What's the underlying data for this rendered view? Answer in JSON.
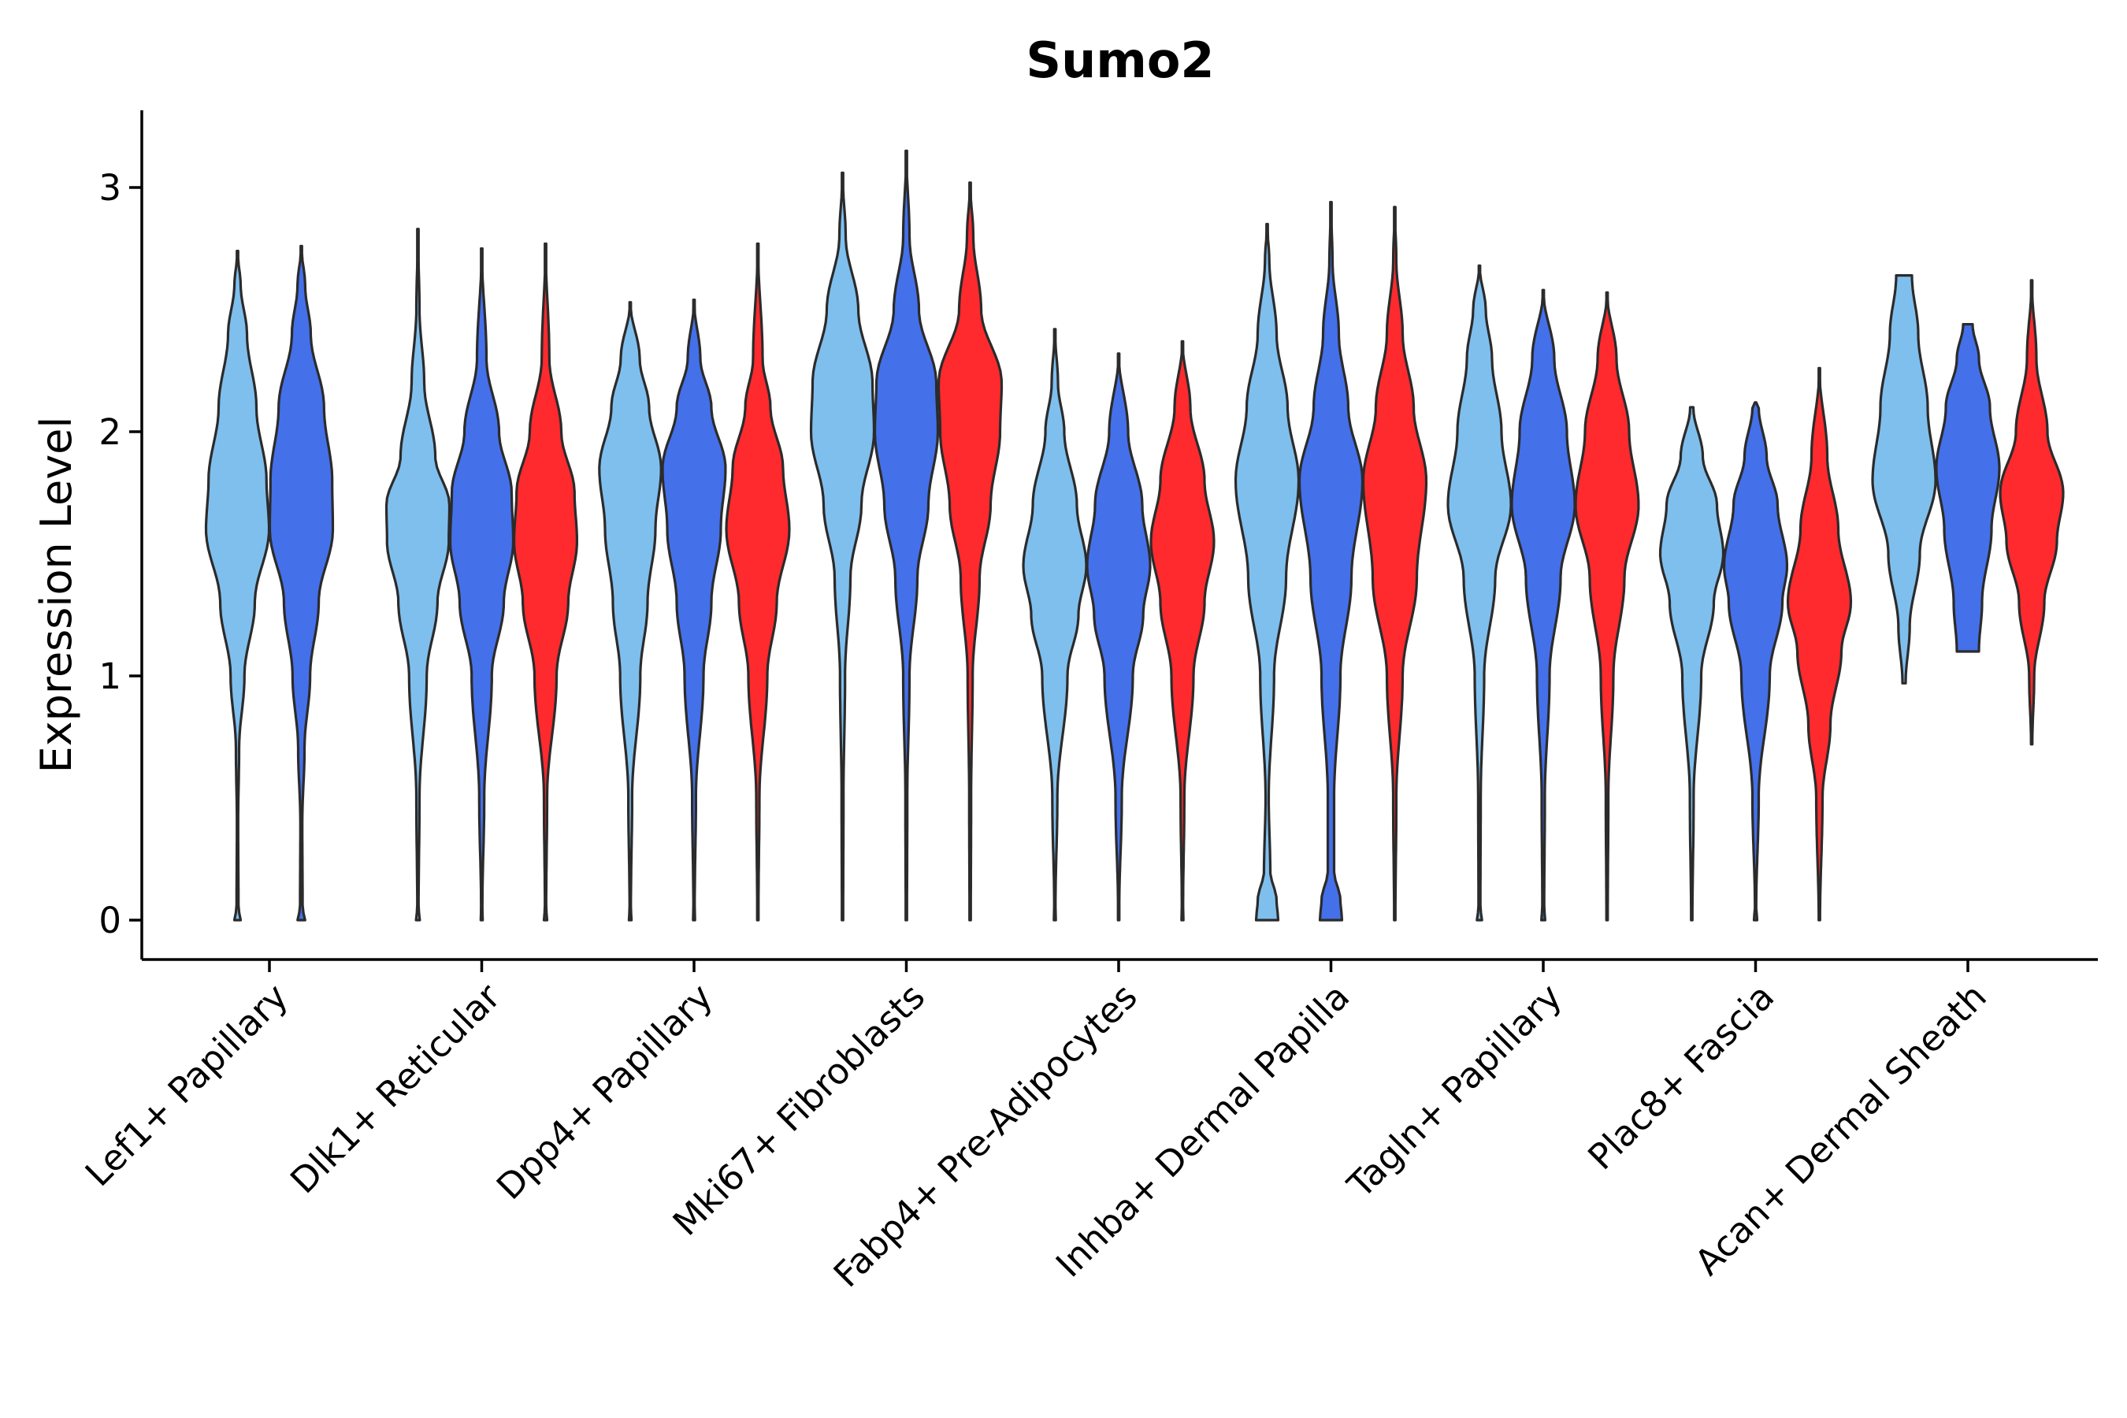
{
  "chart_data": {
    "type": "violin",
    "title": "Sumo2",
    "xlabel": "",
    "ylabel": "Expression Level",
    "ylim": [
      -0.16,
      3.3
    ],
    "yticks": [
      0,
      1,
      2,
      3
    ],
    "grid": false,
    "legend": "none",
    "series_colors": [
      "#7fbfee",
      "#4470ea",
      "#ff2a2e"
    ],
    "categories": [
      "Lef1+ Papillary",
      "Dlk1+ Reticular",
      "Dpp4+ Papillary",
      "Mki67+ Fibroblasts",
      "Fabp4+ Pre-Adipocytes",
      "Inhba+ Dermal Papilla",
      "Tagln+ Papillary",
      "Plac8+ Fascia",
      "Acan+ Dermal Sheath"
    ],
    "violins": [
      {
        "category": 0,
        "series": 0,
        "profile": [
          [
            0,
            0.1
          ],
          [
            0.05,
            0.03
          ],
          [
            0.4,
            0.02
          ],
          [
            0.7,
            0.05
          ],
          [
            1.0,
            0.22
          ],
          [
            1.3,
            0.55
          ],
          [
            1.6,
            1.0
          ],
          [
            1.8,
            0.92
          ],
          [
            2.1,
            0.6
          ],
          [
            2.4,
            0.3
          ],
          [
            2.6,
            0.1
          ],
          [
            2.74,
            0
          ]
        ]
      },
      {
        "category": 0,
        "series": 1,
        "profile": [
          [
            0,
            0.12
          ],
          [
            0.05,
            0.04
          ],
          [
            0.4,
            0.03
          ],
          [
            0.7,
            0.1
          ],
          [
            1.0,
            0.28
          ],
          [
            1.3,
            0.55
          ],
          [
            1.6,
            1.0
          ],
          [
            1.8,
            0.98
          ],
          [
            2.1,
            0.72
          ],
          [
            2.4,
            0.3
          ],
          [
            2.6,
            0.12
          ],
          [
            2.76,
            0
          ]
        ]
      },
      {
        "category": 1,
        "series": 0,
        "profile": [
          [
            0,
            0.06
          ],
          [
            0.05,
            0.02
          ],
          [
            0.5,
            0.05
          ],
          [
            1.0,
            0.28
          ],
          [
            1.3,
            0.62
          ],
          [
            1.55,
            0.98
          ],
          [
            1.7,
            1.0
          ],
          [
            1.9,
            0.55
          ],
          [
            2.2,
            0.2
          ],
          [
            2.5,
            0.05
          ],
          [
            2.83,
            0
          ]
        ]
      },
      {
        "category": 1,
        "series": 1,
        "profile": [
          [
            0,
            0.03
          ],
          [
            0.05,
            0.02
          ],
          [
            0.5,
            0.08
          ],
          [
            1.0,
            0.32
          ],
          [
            1.3,
            0.7
          ],
          [
            1.55,
            1.0
          ],
          [
            1.75,
            0.95
          ],
          [
            2.0,
            0.55
          ],
          [
            2.3,
            0.15
          ],
          [
            2.75,
            0
          ]
        ]
      },
      {
        "category": 1,
        "series": 2,
        "profile": [
          [
            0,
            0.05
          ],
          [
            0.05,
            0.02
          ],
          [
            0.5,
            0.05
          ],
          [
            1.0,
            0.35
          ],
          [
            1.3,
            0.72
          ],
          [
            1.55,
            1.0
          ],
          [
            1.75,
            0.92
          ],
          [
            2.0,
            0.5
          ],
          [
            2.3,
            0.12
          ],
          [
            2.77,
            0
          ]
        ]
      },
      {
        "category": 2,
        "series": 0,
        "profile": [
          [
            0,
            0.04
          ],
          [
            0.05,
            0.02
          ],
          [
            0.5,
            0.06
          ],
          [
            1.0,
            0.32
          ],
          [
            1.3,
            0.55
          ],
          [
            1.6,
            0.8
          ],
          [
            1.85,
            0.98
          ],
          [
            2.1,
            0.6
          ],
          [
            2.3,
            0.3
          ],
          [
            2.53,
            0
          ]
        ]
      },
      {
        "category": 2,
        "series": 1,
        "profile": [
          [
            0,
            0.03
          ],
          [
            0.05,
            0.02
          ],
          [
            0.5,
            0.06
          ],
          [
            1.0,
            0.3
          ],
          [
            1.3,
            0.55
          ],
          [
            1.6,
            0.85
          ],
          [
            1.85,
            1.0
          ],
          [
            2.1,
            0.55
          ],
          [
            2.3,
            0.2
          ],
          [
            2.54,
            0
          ]
        ]
      },
      {
        "category": 2,
        "series": 2,
        "profile": [
          [
            0,
            0.02
          ],
          [
            0.05,
            0.02
          ],
          [
            0.5,
            0.05
          ],
          [
            1.0,
            0.3
          ],
          [
            1.3,
            0.6
          ],
          [
            1.6,
            1.0
          ],
          [
            1.85,
            0.8
          ],
          [
            2.1,
            0.4
          ],
          [
            2.3,
            0.15
          ],
          [
            2.77,
            0
          ]
        ]
      },
      {
        "category": 3,
        "series": 0,
        "profile": [
          [
            0,
            0.02
          ],
          [
            0.5,
            0.03
          ],
          [
            1.0,
            0.08
          ],
          [
            1.4,
            0.25
          ],
          [
            1.7,
            0.6
          ],
          [
            2.0,
            1.0
          ],
          [
            2.2,
            0.95
          ],
          [
            2.5,
            0.5
          ],
          [
            2.8,
            0.1
          ],
          [
            3.06,
            0
          ]
        ]
      },
      {
        "category": 3,
        "series": 1,
        "profile": [
          [
            0,
            0.02
          ],
          [
            0.5,
            0.03
          ],
          [
            1.0,
            0.1
          ],
          [
            1.4,
            0.35
          ],
          [
            1.7,
            0.7
          ],
          [
            2.0,
            1.0
          ],
          [
            2.2,
            0.95
          ],
          [
            2.5,
            0.4
          ],
          [
            2.8,
            0.1
          ],
          [
            3.15,
            0
          ]
        ]
      },
      {
        "category": 3,
        "series": 2,
        "profile": [
          [
            0,
            0.02
          ],
          [
            0.5,
            0.03
          ],
          [
            1.0,
            0.08
          ],
          [
            1.4,
            0.3
          ],
          [
            1.7,
            0.65
          ],
          [
            2.0,
            0.95
          ],
          [
            2.2,
            1.0
          ],
          [
            2.5,
            0.35
          ],
          [
            2.8,
            0.1
          ],
          [
            3.02,
            0
          ]
        ]
      },
      {
        "category": 4,
        "series": 0,
        "profile": [
          [
            0,
            0.03
          ],
          [
            0.05,
            0.02
          ],
          [
            0.5,
            0.08
          ],
          [
            1.0,
            0.4
          ],
          [
            1.25,
            0.75
          ],
          [
            1.45,
            1.0
          ],
          [
            1.7,
            0.7
          ],
          [
            2.0,
            0.3
          ],
          [
            2.2,
            0.1
          ],
          [
            2.42,
            0
          ]
        ]
      },
      {
        "category": 4,
        "series": 1,
        "profile": [
          [
            0,
            0.02
          ],
          [
            0.05,
            0.02
          ],
          [
            0.5,
            0.1
          ],
          [
            1.0,
            0.45
          ],
          [
            1.25,
            0.78
          ],
          [
            1.45,
            1.0
          ],
          [
            1.7,
            0.75
          ],
          [
            2.0,
            0.3
          ],
          [
            2.32,
            0
          ]
        ]
      },
      {
        "category": 4,
        "series": 2,
        "profile": [
          [
            0,
            0.03
          ],
          [
            0.05,
            0.02
          ],
          [
            0.5,
            0.06
          ],
          [
            1.0,
            0.35
          ],
          [
            1.3,
            0.7
          ],
          [
            1.55,
            1.0
          ],
          [
            1.8,
            0.7
          ],
          [
            2.1,
            0.25
          ],
          [
            2.37,
            0
          ]
        ]
      },
      {
        "category": 5,
        "series": 0,
        "profile": [
          [
            0,
            0.35
          ],
          [
            0.08,
            0.3
          ],
          [
            0.2,
            0.1
          ],
          [
            0.5,
            0.05
          ],
          [
            1.0,
            0.22
          ],
          [
            1.4,
            0.6
          ],
          [
            1.8,
            1.0
          ],
          [
            2.1,
            0.65
          ],
          [
            2.4,
            0.3
          ],
          [
            2.7,
            0.07
          ],
          [
            2.85,
            0
          ]
        ]
      },
      {
        "category": 5,
        "series": 1,
        "profile": [
          [
            0,
            0.35
          ],
          [
            0.08,
            0.3
          ],
          [
            0.2,
            0.1
          ],
          [
            0.5,
            0.1
          ],
          [
            1.0,
            0.3
          ],
          [
            1.4,
            0.65
          ],
          [
            1.8,
            1.0
          ],
          [
            2.1,
            0.55
          ],
          [
            2.4,
            0.25
          ],
          [
            2.7,
            0.05
          ],
          [
            2.94,
            0
          ]
        ]
      },
      {
        "category": 5,
        "series": 2,
        "profile": [
          [
            0,
            0.02
          ],
          [
            0.5,
            0.05
          ],
          [
            1.0,
            0.25
          ],
          [
            1.4,
            0.7
          ],
          [
            1.8,
            1.0
          ],
          [
            2.1,
            0.6
          ],
          [
            2.4,
            0.25
          ],
          [
            2.7,
            0.05
          ],
          [
            2.92,
            0
          ]
        ]
      },
      {
        "category": 6,
        "series": 0,
        "profile": [
          [
            0,
            0.08
          ],
          [
            0.05,
            0.03
          ],
          [
            0.5,
            0.04
          ],
          [
            1.0,
            0.15
          ],
          [
            1.4,
            0.5
          ],
          [
            1.7,
            1.0
          ],
          [
            2.0,
            0.7
          ],
          [
            2.3,
            0.4
          ],
          [
            2.5,
            0.2
          ],
          [
            2.68,
            0
          ]
        ]
      },
      {
        "category": 6,
        "series": 1,
        "profile": [
          [
            0,
            0.06
          ],
          [
            0.05,
            0.03
          ],
          [
            0.5,
            0.05
          ],
          [
            1.0,
            0.2
          ],
          [
            1.4,
            0.55
          ],
          [
            1.7,
            1.0
          ],
          [
            2.0,
            0.75
          ],
          [
            2.3,
            0.35
          ],
          [
            2.58,
            0
          ]
        ]
      },
      {
        "category": 6,
        "series": 2,
        "profile": [
          [
            0,
            0.02
          ],
          [
            0.5,
            0.04
          ],
          [
            1.0,
            0.2
          ],
          [
            1.4,
            0.55
          ],
          [
            1.7,
            1.0
          ],
          [
            2.0,
            0.7
          ],
          [
            2.3,
            0.3
          ],
          [
            2.57,
            0
          ]
        ]
      },
      {
        "category": 7,
        "series": 0,
        "profile": [
          [
            0,
            0.02
          ],
          [
            0.5,
            0.06
          ],
          [
            1.0,
            0.3
          ],
          [
            1.3,
            0.7
          ],
          [
            1.5,
            1.0
          ],
          [
            1.7,
            0.8
          ],
          [
            1.9,
            0.35
          ],
          [
            2.1,
            0.05
          ],
          [
            2.1,
            0
          ]
        ]
      },
      {
        "category": 7,
        "series": 1,
        "profile": [
          [
            0,
            0.05
          ],
          [
            0.05,
            0.02
          ],
          [
            0.5,
            0.1
          ],
          [
            1.0,
            0.45
          ],
          [
            1.3,
            0.85
          ],
          [
            1.45,
            1.0
          ],
          [
            1.7,
            0.7
          ],
          [
            1.9,
            0.35
          ],
          [
            2.1,
            0.1
          ],
          [
            2.12,
            0
          ]
        ]
      },
      {
        "category": 7,
        "series": 2,
        "profile": [
          [
            0,
            0.02
          ],
          [
            0.5,
            0.1
          ],
          [
            0.8,
            0.35
          ],
          [
            1.1,
            0.7
          ],
          [
            1.3,
            1.0
          ],
          [
            1.6,
            0.6
          ],
          [
            1.9,
            0.25
          ],
          [
            2.26,
            0
          ]
        ]
      },
      {
        "category": 8,
        "series": 0,
        "profile": [
          [
            0.97,
            0.05
          ],
          [
            1.2,
            0.18
          ],
          [
            1.5,
            0.5
          ],
          [
            1.8,
            1.0
          ],
          [
            2.1,
            0.75
          ],
          [
            2.4,
            0.45
          ],
          [
            2.64,
            0.25
          ],
          [
            2.64,
            0
          ]
        ]
      },
      {
        "category": 8,
        "series": 1,
        "profile": [
          [
            1.1,
            0.35
          ],
          [
            1.3,
            0.45
          ],
          [
            1.6,
            0.75
          ],
          [
            1.85,
            1.0
          ],
          [
            2.1,
            0.7
          ],
          [
            2.3,
            0.35
          ],
          [
            2.44,
            0.15
          ],
          [
            2.44,
            0
          ]
        ]
      },
      {
        "category": 8,
        "series": 2,
        "profile": [
          [
            0.72,
            0.02
          ],
          [
            1.0,
            0.08
          ],
          [
            1.3,
            0.4
          ],
          [
            1.55,
            0.8
          ],
          [
            1.75,
            1.0
          ],
          [
            2.0,
            0.5
          ],
          [
            2.3,
            0.15
          ],
          [
            2.62,
            0
          ]
        ]
      }
    ]
  }
}
